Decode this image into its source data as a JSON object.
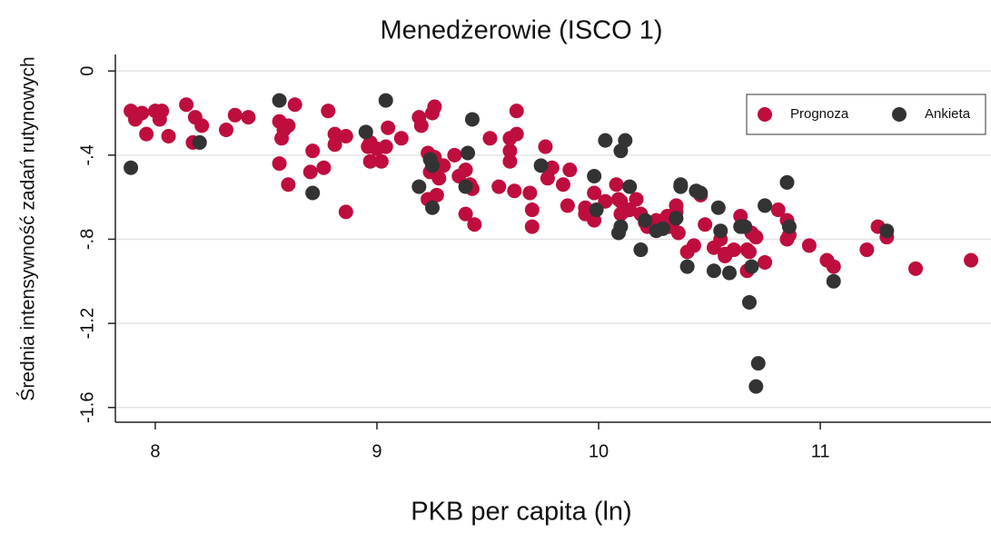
{
  "chart_data": {
    "type": "scatter",
    "title": "Menedżerowie (ISCO 1)",
    "xlabel": "PKB per capita (ln)",
    "ylabel": "Średnia intensywność zadań rutynowych",
    "xlim": [
      7.82,
      11.77
    ],
    "ylim": [
      -1.67,
      0.1
    ],
    "xticks": [
      8,
      9,
      10,
      11
    ],
    "yticks": [
      0,
      {
        "value": -0.4,
        "label": "-.4"
      },
      {
        "value": -0.8,
        "label": "-.8"
      },
      -1.2,
      -1.6
    ],
    "grid": true,
    "legend": "upper right",
    "series": [
      {
        "name": "Prognoza",
        "color": "#bf0d3e",
        "x": [
          7.89,
          7.91,
          7.94,
          7.96,
          8.0,
          8.02,
          8.03,
          8.06,
          8.14,
          8.17,
          8.18,
          8.21,
          8.32,
          8.36,
          8.42,
          8.56,
          8.57,
          8.58,
          8.6,
          8.63,
          8.56,
          8.6,
          8.71,
          8.7,
          8.76,
          8.78,
          8.81,
          8.81,
          8.86,
          8.86,
          8.96,
          8.97,
          8.97,
          9.0,
          9.02,
          9.04,
          9.05,
          9.11,
          9.19,
          9.2,
          9.23,
          9.25,
          9.26,
          9.24,
          9.26,
          9.26,
          9.28,
          9.27,
          9.23,
          9.3,
          9.35,
          9.37,
          9.4,
          9.4,
          9.42,
          9.43,
          9.44,
          9.51,
          9.55,
          9.6,
          9.6,
          9.6,
          9.62,
          9.63,
          9.63,
          9.69,
          9.7,
          9.7,
          9.76,
          9.77,
          9.79,
          9.84,
          9.86,
          9.87,
          9.94,
          9.94,
          9.98,
          9.98,
          10.03,
          10.08,
          10.09,
          10.1,
          10.11,
          10.1,
          10.12,
          10.14,
          10.17,
          10.19,
          10.21,
          10.22,
          10.26,
          10.26,
          10.31,
          10.32,
          10.34,
          10.35,
          10.35,
          10.36,
          10.4,
          10.43,
          10.46,
          10.48,
          10.52,
          10.55,
          10.57,
          10.57,
          10.61,
          10.64,
          10.67,
          10.68,
          10.69,
          10.71,
          10.67,
          10.75,
          10.81,
          10.85,
          10.85,
          10.86,
          10.95,
          11.03,
          11.06,
          11.21,
          11.26,
          11.3,
          11.43,
          11.68
        ],
        "values": [
          -0.19,
          -0.23,
          -0.2,
          -0.3,
          -0.19,
          -0.23,
          -0.19,
          -0.31,
          -0.16,
          -0.34,
          -0.22,
          -0.26,
          -0.28,
          -0.21,
          -0.22,
          -0.24,
          -0.32,
          -0.28,
          -0.26,
          -0.16,
          -0.44,
          -0.54,
          -0.38,
          -0.48,
          -0.46,
          -0.19,
          -0.35,
          -0.3,
          -0.31,
          -0.67,
          -0.36,
          -0.43,
          -0.34,
          -0.37,
          -0.43,
          -0.36,
          -0.27,
          -0.32,
          -0.22,
          -0.26,
          -0.39,
          -0.2,
          -0.17,
          -0.48,
          -0.45,
          -0.41,
          -0.51,
          -0.59,
          -0.61,
          -0.45,
          -0.4,
          -0.5,
          -0.47,
          -0.68,
          -0.54,
          -0.56,
          -0.73,
          -0.32,
          -0.55,
          -0.32,
          -0.43,
          -0.38,
          -0.57,
          -0.19,
          -0.3,
          -0.58,
          -0.66,
          -0.74,
          -0.36,
          -0.51,
          -0.46,
          -0.54,
          -0.64,
          -0.47,
          -0.65,
          -0.68,
          -0.58,
          -0.71,
          -0.62,
          -0.54,
          -0.61,
          -0.62,
          -0.67,
          -0.68,
          -0.66,
          -0.66,
          -0.61,
          -0.68,
          -0.72,
          -0.74,
          -0.71,
          -0.75,
          -0.69,
          -0.74,
          -0.71,
          -0.67,
          -0.64,
          -0.77,
          -0.86,
          -0.83,
          -0.59,
          -0.73,
          -0.84,
          -0.8,
          -0.87,
          -0.88,
          -0.85,
          -0.69,
          -0.85,
          -0.86,
          -0.77,
          -0.79,
          -0.95,
          -0.91,
          -0.66,
          -0.71,
          -0.8,
          -0.78,
          -0.83,
          -0.9,
          -0.93,
          -0.85,
          -0.74,
          -0.79,
          -0.94,
          -0.9
        ]
      },
      {
        "name": "Ankieta",
        "color": "#333333",
        "x": [
          7.89,
          8.2,
          8.56,
          8.71,
          8.95,
          9.04,
          9.19,
          9.25,
          9.24,
          9.25,
          9.41,
          9.43,
          9.4,
          9.74,
          9.98,
          9.99,
          10.03,
          10.1,
          10.12,
          10.14,
          10.1,
          10.09,
          10.21,
          10.19,
          10.26,
          10.29,
          10.35,
          10.37,
          10.37,
          10.4,
          10.44,
          10.46,
          10.52,
          10.54,
          10.55,
          10.59,
          10.64,
          10.65,
          10.66,
          10.68,
          10.69,
          10.72,
          10.71,
          10.75,
          10.85,
          10.86,
          11.06,
          11.3
        ],
        "values": [
          -0.46,
          -0.34,
          -0.14,
          -0.58,
          -0.29,
          -0.14,
          -0.55,
          -0.65,
          -0.42,
          -0.45,
          -0.39,
          -0.23,
          -0.55,
          -0.45,
          -0.5,
          -0.66,
          -0.33,
          -0.38,
          -0.33,
          -0.55,
          -0.74,
          -0.77,
          -0.71,
          -0.85,
          -0.76,
          -0.75,
          -0.7,
          -0.55,
          -0.54,
          -0.93,
          -0.57,
          -0.58,
          -0.95,
          -0.65,
          -0.76,
          -0.96,
          -0.74,
          -0.74,
          -0.74,
          -1.1,
          -0.93,
          -1.39,
          -1.5,
          -0.64,
          -0.53,
          -0.74,
          -1.0,
          -0.76
        ]
      }
    ]
  }
}
